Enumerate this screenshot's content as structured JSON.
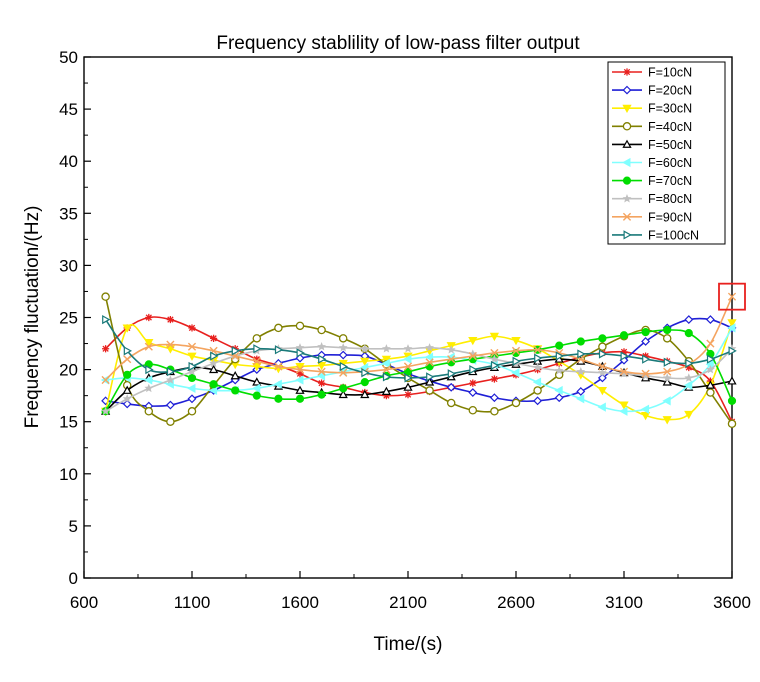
{
  "chart_data": {
    "type": "line",
    "title": "Frequency stablility of low-pass filter output",
    "xlabel": "Time/(s)",
    "ylabel": "Frequency fluctuation/(Hz)",
    "xlim": [
      600,
      3600
    ],
    "ylim": [
      0,
      50
    ],
    "x_ticks": [
      600,
      1100,
      1600,
      2100,
      2600,
      3100,
      3600
    ],
    "y_ticks": [
      0,
      5,
      10,
      15,
      20,
      25,
      30,
      35,
      40,
      45,
      50
    ],
    "x_tick_labels": [
      "600",
      "1100",
      "1600",
      "2100",
      "2600",
      "3100",
      "3600"
    ],
    "y_tick_labels": [
      "0",
      "5",
      "10",
      "15",
      "20",
      "25",
      "30",
      "35",
      "40",
      "45",
      "50"
    ],
    "grid": false,
    "legend_position": "top-right",
    "x": [
      700,
      800,
      900,
      1000,
      1100,
      1200,
      1300,
      1400,
      1500,
      1600,
      1700,
      1800,
      1900,
      2000,
      2100,
      2200,
      2300,
      2400,
      2500,
      2600,
      2700,
      2800,
      2900,
      3000,
      3100,
      3200,
      3300,
      3400,
      3500,
      3600
    ],
    "series": [
      {
        "name": "F=10cN",
        "color": "#e8201e",
        "marker": "asterisk",
        "values": [
          22.0,
          24.0,
          25.0,
          24.8,
          24.0,
          23.0,
          22.0,
          21.0,
          20.4,
          19.6,
          18.7,
          18.3,
          17.8,
          17.5,
          17.6,
          17.9,
          18.3,
          18.7,
          19.1,
          19.5,
          20.0,
          20.6,
          21.2,
          21.6,
          21.7,
          21.3,
          20.8,
          20.2,
          18.9,
          15.0
        ]
      },
      {
        "name": "F=20cN",
        "color": "#1f1fd6",
        "marker": "diamond",
        "values": [
          17.0,
          16.7,
          16.5,
          16.6,
          17.2,
          18.0,
          19.0,
          20.0,
          20.6,
          21.1,
          21.4,
          21.4,
          21.3,
          20.5,
          19.6,
          18.9,
          18.3,
          17.8,
          17.3,
          17.0,
          17.0,
          17.3,
          17.9,
          19.2,
          20.9,
          22.7,
          24.0,
          24.8,
          24.8,
          24.0
        ]
      },
      {
        "name": "F=30cN",
        "color": "#ffee00",
        "marker": "triangle-down",
        "values": [
          16.0,
          24.0,
          22.6,
          22.0,
          21.3,
          20.9,
          20.5,
          20.3,
          20.1,
          20.3,
          20.4,
          20.6,
          20.8,
          21.0,
          21.3,
          21.8,
          22.3,
          22.8,
          23.2,
          22.8,
          22.0,
          20.8,
          19.5,
          18.0,
          16.6,
          15.6,
          15.2,
          15.7,
          18.5,
          24.5
        ]
      },
      {
        "name": "F=40cN",
        "color": "#808000",
        "marker": "circle-open",
        "values": [
          27.0,
          18.5,
          16.0,
          15.0,
          16.0,
          18.5,
          21.0,
          23.0,
          24.0,
          24.2,
          23.8,
          23.0,
          22.0,
          20.5,
          19.2,
          18.0,
          16.8,
          16.1,
          16.0,
          16.8,
          18.0,
          19.5,
          21.0,
          22.2,
          23.2,
          23.8,
          23.0,
          20.8,
          17.8,
          14.8
        ]
      },
      {
        "name": "F=50cN",
        "color": "#000000",
        "marker": "triangle-up-open",
        "values": [
          16.0,
          18.0,
          19.2,
          19.8,
          20.2,
          20.0,
          19.4,
          18.8,
          18.4,
          18.0,
          17.8,
          17.6,
          17.6,
          17.9,
          18.3,
          18.8,
          19.3,
          19.8,
          20.2,
          20.5,
          20.8,
          21.0,
          20.8,
          20.3,
          19.7,
          19.2,
          18.8,
          18.3,
          18.5,
          18.9
        ]
      },
      {
        "name": "F=60cN",
        "color": "#80ffff",
        "marker": "triangle-left",
        "values": [
          19.0,
          19.2,
          19.0,
          18.6,
          18.2,
          18.0,
          18.0,
          18.2,
          18.6,
          19.0,
          19.4,
          19.8,
          20.2,
          20.6,
          21.0,
          21.2,
          21.2,
          20.9,
          20.5,
          19.7,
          18.8,
          18.0,
          17.2,
          16.4,
          16.0,
          16.2,
          17.0,
          18.5,
          20.5,
          24.0
        ]
      },
      {
        "name": "F=70cN",
        "color": "#00dd00",
        "marker": "circle-filled",
        "values": [
          16.0,
          19.5,
          20.5,
          20.0,
          19.2,
          18.6,
          18.0,
          17.5,
          17.2,
          17.2,
          17.6,
          18.2,
          18.8,
          19.4,
          19.8,
          20.3,
          20.7,
          21.0,
          21.3,
          21.6,
          21.9,
          22.3,
          22.7,
          23.0,
          23.3,
          23.6,
          23.8,
          23.5,
          21.5,
          17.0
        ]
      },
      {
        "name": "F=80cN",
        "color": "#c0c0c0",
        "marker": "star",
        "values": [
          16.0,
          17.2,
          18.2,
          19.0,
          19.8,
          20.6,
          21.3,
          21.8,
          22.0,
          22.1,
          22.2,
          22.1,
          22.0,
          22.0,
          22.0,
          22.1,
          21.9,
          21.5,
          21.0,
          20.6,
          20.2,
          19.9,
          19.8,
          19.7,
          19.6,
          19.4,
          19.2,
          19.2,
          20.0,
          22.0
        ]
      },
      {
        "name": "F=90cN",
        "color": "#f4a460",
        "marker": "x",
        "values": [
          19.0,
          21.0,
          22.2,
          22.4,
          22.2,
          21.8,
          21.3,
          20.8,
          20.3,
          20.0,
          19.8,
          19.7,
          19.8,
          20.0,
          20.3,
          20.7,
          21.0,
          21.3,
          21.6,
          21.8,
          21.9,
          21.6,
          21.0,
          20.3,
          19.8,
          19.6,
          19.8,
          20.5,
          22.5,
          27.0
        ]
      },
      {
        "name": "F=100cN",
        "color": "#1a7a7a",
        "marker": "triangle-right",
        "values": [
          24.8,
          21.8,
          20.0,
          19.8,
          20.3,
          21.3,
          21.8,
          22.0,
          21.9,
          21.6,
          21.0,
          20.3,
          19.7,
          19.3,
          19.2,
          19.3,
          19.6,
          20.0,
          20.4,
          20.8,
          21.1,
          21.3,
          21.5,
          21.5,
          21.3,
          21.0,
          20.7,
          20.6,
          21.0,
          21.8
        ]
      }
    ],
    "annotation": {
      "type": "box",
      "color": "#e8201e",
      "x": 3600,
      "y": 27
    }
  }
}
